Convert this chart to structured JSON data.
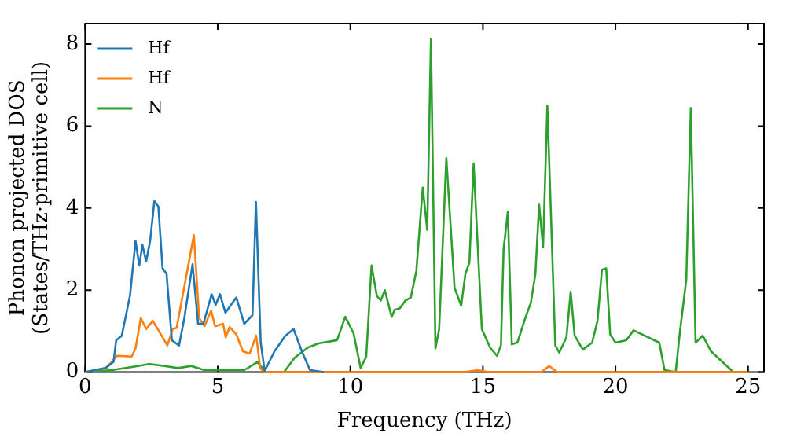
{
  "chart_data": {
    "type": "line",
    "xlabel": "Frequency (THz)",
    "ylabel": "Phonon projected DOS\n(States/THz·primitive cell)",
    "xlim": [
      0,
      25.6
    ],
    "ylim": [
      0,
      8.5
    ],
    "xticks": [
      0,
      5,
      10,
      15,
      20,
      25
    ],
    "yticks": [
      0,
      2,
      4,
      6,
      8
    ],
    "grid": false,
    "legend": "top left",
    "marker": "none",
    "line_style": "solid",
    "series": [
      {
        "name": "Hf",
        "color": "#1f77b4",
        "x": [
          0,
          0.76,
          1.07,
          1.17,
          1.38,
          1.69,
          1.9,
          2.04,
          2.16,
          2.3,
          2.45,
          2.61,
          2.76,
          2.92,
          3.07,
          3.27,
          3.54,
          3.74,
          4.05,
          4.26,
          4.46,
          4.77,
          4.92,
          5.08,
          5.29,
          5.7,
          6.0,
          6.31,
          6.44,
          6.62,
          6.77,
          7.14,
          7.55,
          7.86,
          8.17,
          8.48,
          9
        ],
        "values": [
          0,
          0.1,
          0.25,
          0.78,
          0.89,
          1.86,
          3.2,
          2.6,
          3.1,
          2.7,
          3.2,
          4.17,
          4.04,
          2.53,
          2.4,
          0.78,
          0.65,
          1.32,
          2.63,
          1.18,
          1.18,
          1.9,
          1.64,
          1.9,
          1.45,
          1.82,
          1.18,
          1.39,
          4.15,
          0.72,
          0.03,
          0.51,
          0.89,
          1.05,
          0.51,
          0.05,
          0
        ]
      },
      {
        "name": "Hf",
        "color": "#ff7f0e",
        "x": [
          0,
          0.8,
          1.2,
          1.75,
          1.9,
          2.1,
          2.3,
          2.55,
          2.8,
          3.1,
          3.3,
          3.45,
          4.1,
          4.3,
          4.5,
          4.75,
          4.9,
          5.2,
          5.3,
          5.45,
          5.7,
          5.95,
          6.2,
          6.45,
          6.6,
          6.75,
          14.3,
          14.8,
          15.2,
          17.2,
          17.5,
          17.8,
          25
        ],
        "values": [
          0,
          0.1,
          0.4,
          0.38,
          0.58,
          1.32,
          1.05,
          1.25,
          0.98,
          0.65,
          1.05,
          1.08,
          3.34,
          1.32,
          1.12,
          1.5,
          1.12,
          1.18,
          0.85,
          1.1,
          0.92,
          0.51,
          0.45,
          0.89,
          0.1,
          0,
          0,
          0.05,
          0,
          0,
          0.15,
          0,
          0
        ]
      },
      {
        "name": "N",
        "color": "#2ca02c",
        "x": [
          0,
          1,
          2,
          2.4,
          3,
          3.5,
          4,
          4.5,
          6,
          6.5,
          6.8,
          7.5,
          7.9,
          8.4,
          8.8,
          9.5,
          9.81,
          10.12,
          10.39,
          10.6,
          10.8,
          11.0,
          11.15,
          11.3,
          11.56,
          11.67,
          11.87,
          12.08,
          12.28,
          12.49,
          12.73,
          12.9,
          13.04,
          13.21,
          13.35,
          13.62,
          13.93,
          14.18,
          14.34,
          14.49,
          14.65,
          14.96,
          15.27,
          15.53,
          15.68,
          15.78,
          15.94,
          16.09,
          16.3,
          16.6,
          16.81,
          16.98,
          17.12,
          17.27,
          17.43,
          17.73,
          17.88,
          18.15,
          18.31,
          18.46,
          18.77,
          19.12,
          19.32,
          19.49,
          19.65,
          19.8,
          20.0,
          20.41,
          20.68,
          21.65,
          21.85,
          22.27,
          22.43,
          22.67,
          22.84,
          23.02,
          23.29,
          23.6,
          24.4
        ],
        "values": [
          0,
          0.05,
          0.15,
          0.2,
          0.15,
          0.1,
          0.15,
          0.05,
          0.05,
          0.25,
          0,
          0,
          0.35,
          0.6,
          0.7,
          0.78,
          1.35,
          0.95,
          0.1,
          0.38,
          2.6,
          1.86,
          1.75,
          2.0,
          1.35,
          1.52,
          1.56,
          1.75,
          1.82,
          2.47,
          4.5,
          3.47,
          8.12,
          0.58,
          1.05,
          5.22,
          2.06,
          1.62,
          2.4,
          2.67,
          5.09,
          1.05,
          0.6,
          0.4,
          0.65,
          3.0,
          3.92,
          0.68,
          0.72,
          1.32,
          1.7,
          2.4,
          4.08,
          3.06,
          6.5,
          0.65,
          0.48,
          0.85,
          1.96,
          0.89,
          0.55,
          0.72,
          1.25,
          2.5,
          2.53,
          0.92,
          0.72,
          0.78,
          1.02,
          0.72,
          0.05,
          0,
          0.98,
          2.26,
          6.44,
          0.72,
          0.89,
          0.51,
          0.03
        ]
      }
    ]
  }
}
